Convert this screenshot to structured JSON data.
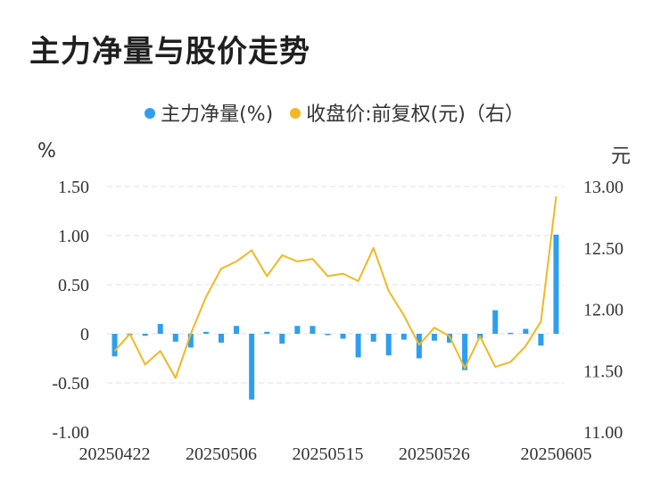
{
  "title": "主力净量与股价走势",
  "legend": {
    "series1": "主力净量(%)",
    "series2": "收盘价:前复权(元)（右）"
  },
  "left_unit": "%",
  "right_unit": "元",
  "colors": {
    "bar": "#2e9ef0",
    "line": "#f2b824",
    "grid": "#e0e0e0",
    "text": "#333333"
  },
  "chart_data": {
    "type": "bar+line",
    "x_tick_labels": [
      "20250422",
      "20250506",
      "20250515",
      "20250526",
      "20250605"
    ],
    "left_axis": {
      "ylim": [
        -1.0,
        1.5
      ],
      "ticks": [
        "1.50",
        "1.00",
        "0.50",
        "0",
        "-0.50",
        "-1.00"
      ]
    },
    "right_axis": {
      "ylim": [
        11.0,
        13.0
      ],
      "ticks": [
        "13.00",
        "12.50",
        "12.00",
        "11.50",
        "11.00"
      ]
    },
    "series": [
      {
        "name": "主力净量(%)",
        "type": "bar",
        "axis": "left",
        "values": [
          -0.23,
          0.0,
          -0.02,
          0.1,
          -0.08,
          -0.14,
          0.02,
          -0.09,
          0.08,
          -0.67,
          0.02,
          -0.1,
          0.08,
          0.08,
          0.0,
          -0.05,
          -0.24,
          -0.08,
          -0.22,
          -0.06,
          -0.25,
          -0.07,
          -0.09,
          -0.37,
          -0.05,
          0.24,
          0.01,
          0.05,
          -0.12,
          1.01
        ]
      },
      {
        "name": "收盘价:前复权(元)",
        "type": "line",
        "axis": "right",
        "values": [
          11.66,
          11.8,
          11.55,
          11.66,
          11.44,
          11.8,
          12.1,
          12.33,
          12.39,
          12.48,
          12.27,
          12.44,
          12.39,
          12.41,
          12.27,
          12.29,
          12.23,
          12.5,
          12.15,
          11.95,
          11.71,
          11.85,
          11.78,
          11.52,
          11.78,
          11.53,
          11.57,
          11.7,
          11.9,
          12.92
        ]
      }
    ]
  }
}
